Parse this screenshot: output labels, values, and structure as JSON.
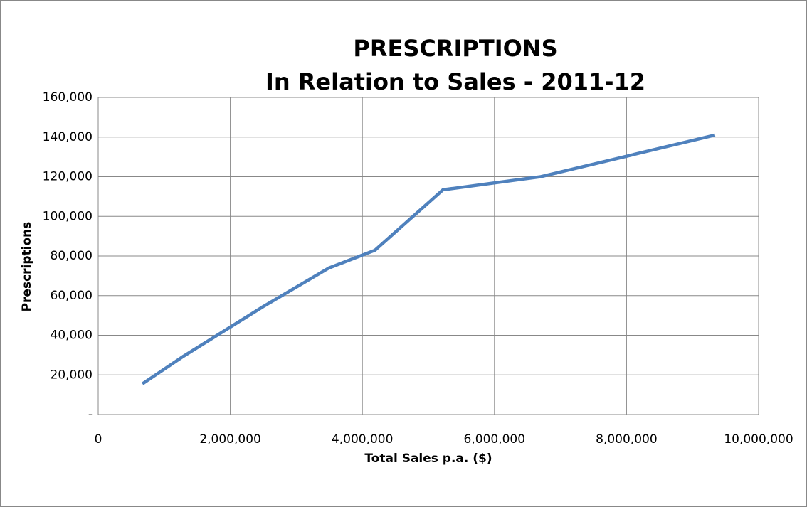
{
  "chart_data": {
    "type": "line",
    "title": "PRESCRIPTIONS",
    "subtitle": "In Relation to Sales - 2011-12",
    "x_label": "Total Sales p.a. ($)",
    "y_label": "Prescriptions",
    "x": [
      670000,
      1290000,
      2500000,
      3490000,
      4190000,
      5220000,
      6700000,
      9340000
    ],
    "series": [
      {
        "name": "Prescriptions",
        "color": "#4f81bd",
        "values": [
          15500,
          29400,
          54500,
          73900,
          82900,
          113400,
          120000,
          141000
        ]
      }
    ],
    "xlim": [
      0,
      10000000
    ],
    "xticks": [
      0,
      {
        "value": 2000000,
        "label": "2,000,000"
      },
      {
        "value": 4000000,
        "label": "4,000,000"
      },
      {
        "value": 6000000,
        "label": "6,000,000"
      },
      {
        "value": 8000000,
        "label": "8,000,000"
      },
      {
        "value": 10000000,
        "label": "10,000,000"
      }
    ],
    "ylim": [
      0,
      160000
    ],
    "yticks": [
      {
        "value": 0,
        "label": "-"
      },
      {
        "value": 20000,
        "label": "20,000"
      },
      {
        "value": 40000,
        "label": "40,000"
      },
      {
        "value": 60000,
        "label": "60,000"
      },
      {
        "value": 80000,
        "label": "80,000"
      },
      {
        "value": 100000,
        "label": "100,000"
      },
      {
        "value": 120000,
        "label": "120,000"
      },
      {
        "value": 140000,
        "label": "140,000"
      },
      {
        "value": 160000,
        "label": "160,000"
      }
    ],
    "grid": true
  }
}
